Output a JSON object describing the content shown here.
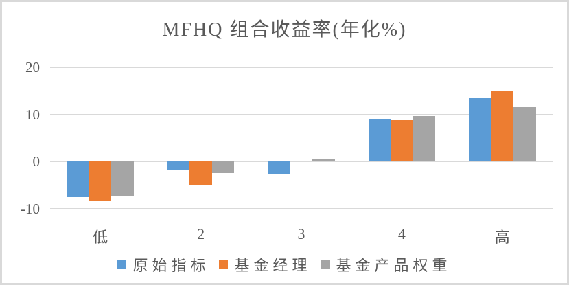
{
  "window": {
    "background": "#ffffff",
    "border_color": "#d9d9d9"
  },
  "chart_data": {
    "type": "bar",
    "title": "MFHQ 组合收益率(年化%)",
    "categories": [
      "低",
      "2",
      "3",
      "4",
      "高"
    ],
    "series": [
      {
        "name": "原始指标",
        "color": "#5b9bd5",
        "values": [
          -7.5,
          -1.7,
          -2.6,
          9.1,
          13.6
        ]
      },
      {
        "name": "基金经理",
        "color": "#ed7d31",
        "values": [
          -8.2,
          -5.1,
          0.2,
          8.8,
          15.1
        ]
      },
      {
        "name": "基金产品权重",
        "color": "#a5a5a5",
        "values": [
          -7.4,
          -2.4,
          0.5,
          9.6,
          11.6
        ]
      }
    ],
    "ylim": [
      -10,
      20
    ],
    "yticks": [
      20,
      10,
      0,
      -10
    ],
    "grid": true,
    "legend_position": "bottom",
    "text_color": "#595959",
    "gridline_color": "#d9d9d9"
  }
}
